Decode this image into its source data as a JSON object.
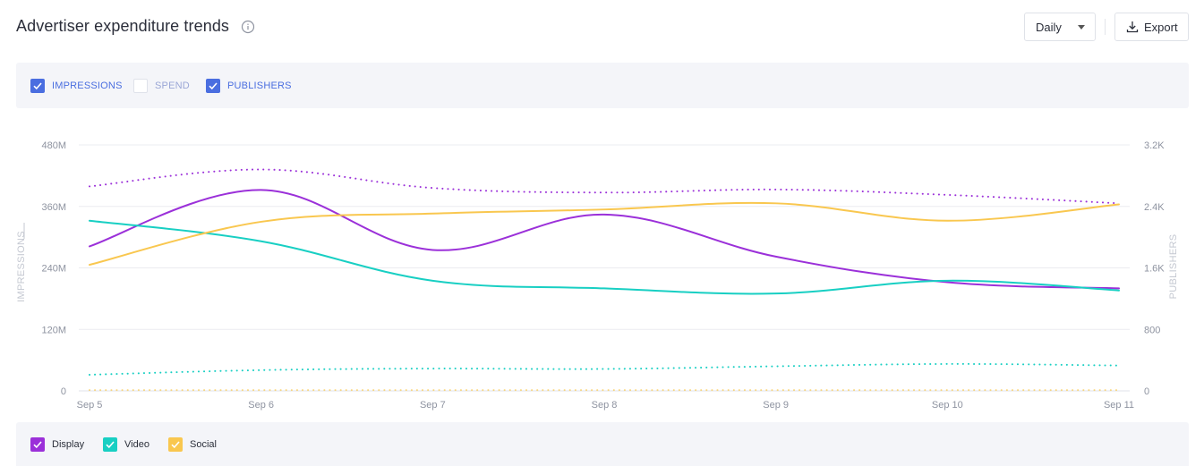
{
  "header": {
    "title": "Advertiser expenditure trends",
    "interval_label": "Daily",
    "export_label": "Export"
  },
  "metrics": [
    {
      "label": "IMPRESSIONS",
      "checked": true,
      "color": "#4a6ee0"
    },
    {
      "label": "SPEND",
      "checked": false,
      "color": "#9aa6d6"
    },
    {
      "label": "PUBLISHERS",
      "checked": true,
      "color": "#4a6ee0"
    }
  ],
  "legend": [
    {
      "label": "Display",
      "color": "#9b30d9"
    },
    {
      "label": "Video",
      "color": "#18cfc3"
    },
    {
      "label": "Social",
      "color": "#f9c74f"
    }
  ],
  "chart_data": {
    "type": "line",
    "x": [
      "Sep 5",
      "Sep 6",
      "Sep 7",
      "Sep 8",
      "Sep 9",
      "Sep 10",
      "Sep 11"
    ],
    "ylabel": "IMPRESSIONS",
    "y2label": "PUBLISHERS",
    "ylim": [
      0,
      480000000
    ],
    "y2lim": [
      0,
      3200
    ],
    "yticks": [
      "0",
      "120M",
      "240M",
      "360M",
      "480M"
    ],
    "y2ticks": [
      "0",
      "800",
      "1.6K",
      "2.4K",
      "3.2K"
    ],
    "grid": true,
    "series": [
      {
        "name": "Display",
        "metric": "IMPRESSIONS",
        "axis": "left",
        "style": "solid",
        "color": "#9b30d9",
        "values": [
          282000000,
          392000000,
          275000000,
          344000000,
          262000000,
          212000000,
          200000000
        ]
      },
      {
        "name": "Video",
        "metric": "IMPRESSIONS",
        "axis": "left",
        "style": "solid",
        "color": "#18cfc3",
        "values": [
          332000000,
          292000000,
          215000000,
          200000000,
          190000000,
          215000000,
          196000000
        ]
      },
      {
        "name": "Social",
        "metric": "IMPRESSIONS",
        "axis": "left",
        "style": "solid",
        "color": "#f9c74f",
        "values": [
          246000000,
          330000000,
          346000000,
          354000000,
          366000000,
          332000000,
          364000000
        ]
      },
      {
        "name": "Display",
        "metric": "PUBLISHERS",
        "axis": "right",
        "style": "dotted",
        "color": "#9b30d9",
        "values": [
          2660,
          2880,
          2640,
          2580,
          2620,
          2550,
          2440
        ]
      },
      {
        "name": "Video",
        "metric": "PUBLISHERS",
        "axis": "right",
        "style": "dotted",
        "color": "#18cfc3",
        "values": [
          210,
          270,
          290,
          285,
          320,
          350,
          330
        ]
      },
      {
        "name": "Social",
        "metric": "PUBLISHERS",
        "axis": "right",
        "style": "dotted",
        "color": "#f9c74f",
        "values": [
          10,
          10,
          10,
          10,
          10,
          10,
          10
        ]
      }
    ]
  }
}
